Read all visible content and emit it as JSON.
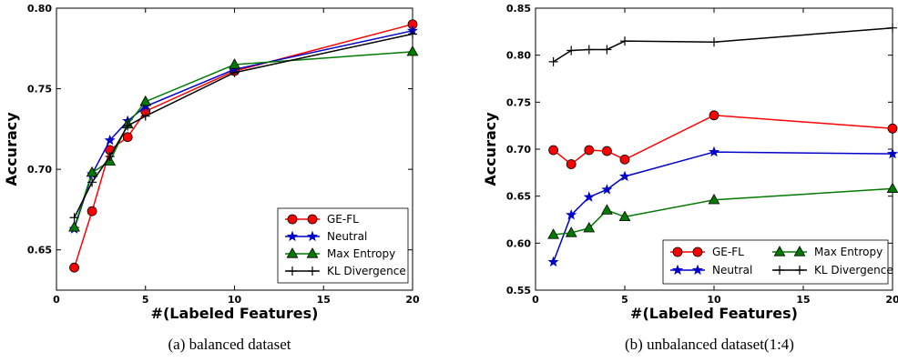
{
  "chart_data": [
    {
      "type": "line",
      "caption": "(a)  balanced dataset",
      "xlabel": "#(Labeled Features)",
      "ylabel": "Accuracy",
      "xlim": [
        0,
        20
      ],
      "ylim": [
        0.625,
        0.8
      ],
      "xticks": [
        0,
        5,
        10,
        15,
        20
      ],
      "yticks": [
        0.65,
        0.7,
        0.75,
        0.8
      ],
      "ytick_labels": [
        "0.65",
        "0.70",
        "0.75",
        "0.80"
      ],
      "legend": "bottom-right",
      "legend_cols": 1,
      "series": [
        {
          "name": "GE-FL",
          "color": "#ff0000",
          "marker": "circle",
          "x": [
            1,
            2,
            3,
            4,
            5,
            10,
            20
          ],
          "y": [
            0.639,
            0.674,
            0.712,
            0.72,
            0.736,
            0.761,
            0.79
          ]
        },
        {
          "name": "Neutral",
          "color": "#0000cc",
          "marker": "star",
          "x": [
            1,
            2,
            3,
            4,
            5,
            10,
            20
          ],
          "y": [
            0.663,
            0.697,
            0.718,
            0.73,
            0.739,
            0.762,
            0.786
          ]
        },
        {
          "name": "Max Entropy",
          "color": "#007a00",
          "marker": "triangle",
          "x": [
            1,
            2,
            3,
            4,
            5,
            10,
            20
          ],
          "y": [
            0.664,
            0.698,
            0.705,
            0.728,
            0.742,
            0.765,
            0.773
          ]
        },
        {
          "name": "KL Divergence",
          "color": "#000000",
          "marker": "plus",
          "x": [
            1,
            2,
            3,
            4,
            5,
            10,
            20
          ],
          "y": [
            0.67,
            0.692,
            0.708,
            0.727,
            0.733,
            0.76,
            0.784
          ]
        }
      ]
    },
    {
      "type": "line",
      "caption": "(b)  unbalanced dataset(1:4)",
      "xlabel": "#(Labeled Features)",
      "ylabel": "Accuracy",
      "xlim": [
        0,
        20
      ],
      "ylim": [
        0.55,
        0.85
      ],
      "xticks": [
        0,
        5,
        10,
        15,
        20
      ],
      "yticks": [
        0.55,
        0.6,
        0.65,
        0.7,
        0.75,
        0.8,
        0.85
      ],
      "ytick_labels": [
        "0.55",
        "0.60",
        "0.65",
        "0.70",
        "0.75",
        "0.80",
        "0.85"
      ],
      "legend": "bottom-right",
      "legend_cols": 2,
      "series": [
        {
          "name": "GE-FL",
          "color": "#ff0000",
          "marker": "circle",
          "x": [
            1,
            2,
            3,
            4,
            5,
            10,
            20
          ],
          "y": [
            0.699,
            0.684,
            0.699,
            0.698,
            0.689,
            0.736,
            0.722
          ]
        },
        {
          "name": "Neutral",
          "color": "#0000cc",
          "marker": "star",
          "x": [
            1,
            2,
            3,
            4,
            5,
            10,
            20
          ],
          "y": [
            0.58,
            0.63,
            0.649,
            0.657,
            0.671,
            0.697,
            0.695
          ]
        },
        {
          "name": "Max Entropy",
          "color": "#007a00",
          "marker": "triangle",
          "x": [
            1,
            2,
            3,
            4,
            5,
            10,
            20
          ],
          "y": [
            0.609,
            0.611,
            0.616,
            0.635,
            0.628,
            0.646,
            0.658
          ]
        },
        {
          "name": "KL Divergence",
          "color": "#000000",
          "marker": "plus",
          "x": [
            1,
            2,
            3,
            4,
            5,
            10,
            20
          ],
          "y": [
            0.793,
            0.805,
            0.806,
            0.806,
            0.815,
            0.814,
            0.829
          ]
        }
      ]
    }
  ]
}
